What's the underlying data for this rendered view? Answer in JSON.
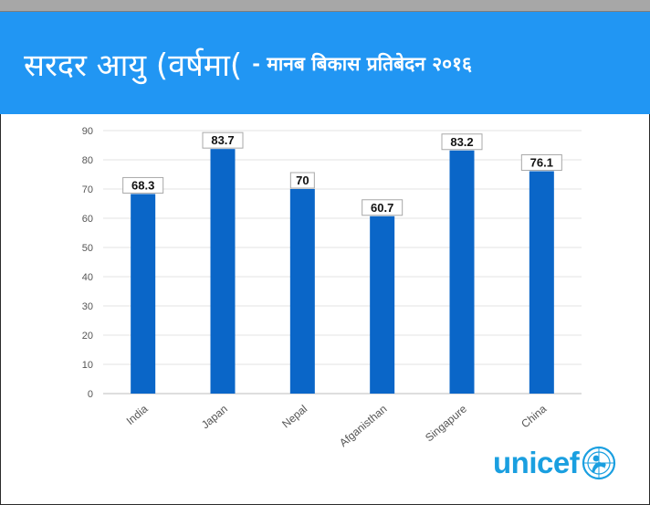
{
  "title": {
    "main": "सरदर आयु (वर्षमा(",
    "sub": "- मानब बिकास प्रतिबेदन २०१६"
  },
  "logo": {
    "text": "unicef",
    "icon": "unicef-emblem-icon"
  },
  "colors": {
    "header": "#2196f3",
    "bar": "#0a66c8",
    "logo": "#1a9fe0"
  },
  "chart_data": {
    "type": "bar",
    "categories": [
      "India",
      "Japan",
      "Nepal",
      "Afganisthan",
      "Singapure",
      "China"
    ],
    "values": [
      68.3,
      83.7,
      70,
      60.7,
      83.2,
      76.1
    ],
    "data_labels": [
      "68.3",
      "83.7",
      "70",
      "60.7",
      "83.2",
      "76.1"
    ],
    "yticks": [
      "0",
      "10",
      "20",
      "30",
      "40",
      "50",
      "60",
      "70",
      "80",
      "90"
    ],
    "ylim": [
      0,
      90
    ],
    "grid": true,
    "legend": "none",
    "xlabel": "",
    "ylabel": ""
  }
}
